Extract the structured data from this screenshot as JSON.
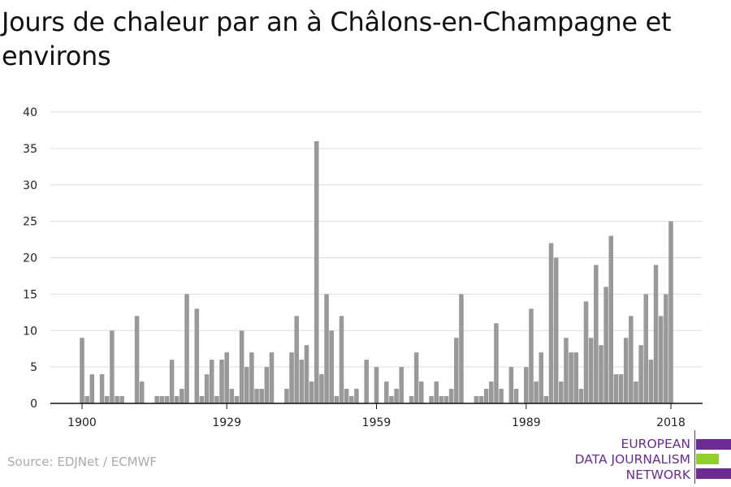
{
  "title": "Jours de chaleur par an à Châlons-en-Champagne et environs",
  "source": "Source: EDJNet / ECMWF",
  "logo": {
    "line1": "EUROPEAN",
    "line2": "DATA JOURNALISM",
    "line3": "NETWORK",
    "colors": {
      "purple": "#6a2c91",
      "green": "#8fd12a"
    }
  },
  "chart_data": {
    "type": "bar",
    "title": "Jours de chaleur par an à Châlons-en-Champagne et environs",
    "xlabel": "",
    "ylabel": "",
    "x_start": 1900,
    "x_end": 2018,
    "x_ticks": [
      1900,
      1929,
      1959,
      1989,
      2018
    ],
    "y_ticks": [
      0,
      5,
      10,
      15,
      20,
      25,
      30,
      35,
      40
    ],
    "ylim": [
      0,
      40
    ],
    "grid": true,
    "bar_color": "#999999",
    "values": [
      9,
      1,
      4,
      0,
      4,
      1,
      10,
      1,
      1,
      0,
      0,
      12,
      3,
      0,
      0,
      1,
      1,
      1,
      6,
      1,
      2,
      15,
      0,
      13,
      1,
      4,
      6,
      1,
      6,
      7,
      2,
      1,
      10,
      5,
      7,
      2,
      2,
      5,
      7,
      0,
      0,
      2,
      7,
      12,
      6,
      8,
      3,
      36,
      4,
      15,
      10,
      1,
      12,
      2,
      1,
      2,
      0,
      6,
      0,
      5,
      0,
      3,
      1,
      2,
      5,
      0,
      1,
      7,
      3,
      0,
      1,
      3,
      1,
      1,
      2,
      9,
      15,
      0,
      0,
      1,
      1,
      2,
      3,
      11,
      2,
      0,
      5,
      2,
      0,
      5,
      13,
      3,
      7,
      1,
      22,
      20,
      3,
      9,
      7,
      7,
      2,
      14,
      9,
      19,
      8,
      16,
      23,
      4,
      4,
      9,
      12,
      3,
      8,
      15,
      6,
      19,
      12,
      15,
      25
    ]
  }
}
